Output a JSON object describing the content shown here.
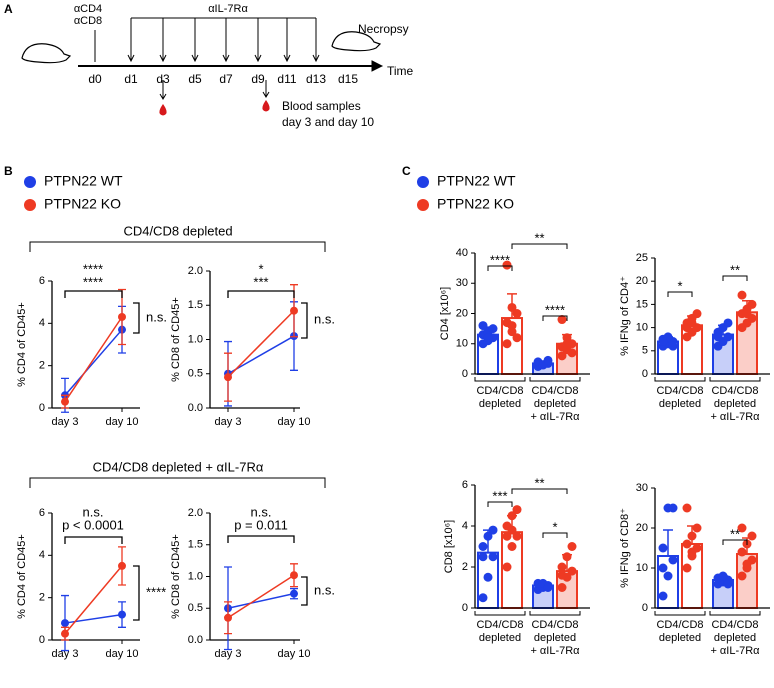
{
  "panel_labels": [
    "A",
    "B",
    "C"
  ],
  "timeline": {
    "injection": [
      "αCD4",
      "αCD8"
    ],
    "treatment": "αIL-7Rα",
    "end": "Necropsy",
    "days": [
      "d0",
      "d1",
      "d3",
      "d5",
      "d7",
      "d9",
      "d11",
      "d13",
      "d15"
    ],
    "axis_label": "Time",
    "note": [
      "Blood samples",
      "day 3 and day 10"
    ]
  },
  "panel_b_groups": [
    "CD4/CD8 depleted",
    "CD4/CD8 depleted + αIL-7Rα"
  ],
  "chart_data": [
    {
      "type": "line",
      "ylabel": "% CD4 of CD45+",
      "categories": [
        "day 3",
        "day 10"
      ],
      "ylim": [
        0,
        6
      ],
      "yticks": [
        0,
        2,
        4,
        6
      ],
      "series": [
        {
          "name": "PTPN22 WT",
          "color": "#1f3fe6",
          "values": [
            0.6,
            3.7
          ],
          "errors": [
            0.8,
            1.1
          ]
        },
        {
          "name": "PTPN22 KO",
          "color": "#ee3a23",
          "values": [
            0.3,
            4.3
          ],
          "errors": [
            0.3,
            1.3
          ]
        }
      ],
      "annotations": [
        {
          "text": "****",
          "color": "#1f3fe6"
        },
        {
          "text": "****",
          "color": "#ee3a23"
        },
        {
          "text": "n.s.",
          "color": "#000000"
        }
      ]
    },
    {
      "type": "line",
      "ylabel": "% CD8 of CD45+",
      "categories": [
        "day 3",
        "day 10"
      ],
      "ylim": [
        0,
        2
      ],
      "yticks": [
        {
          "value": 0,
          "label": "0.0"
        },
        0.5,
        {
          "value": 1,
          "label": "1.0"
        },
        1.5,
        {
          "value": 2,
          "label": "2.0"
        }
      ],
      "series": [
        {
          "color": "#1f3fe6",
          "values": [
            0.5,
            1.05
          ],
          "errors": [
            0.47,
            0.5
          ]
        },
        {
          "color": "#ee3a23",
          "values": [
            0.45,
            1.42
          ],
          "errors": [
            0.35,
            0.38
          ]
        }
      ],
      "annotations": [
        {
          "text": "*",
          "color": "#1f3fe6"
        },
        {
          "text": "***",
          "color": "#ee3a23"
        },
        {
          "text": "n.s.",
          "color": "#000000"
        }
      ]
    },
    {
      "type": "line",
      "ylabel": "% CD4 of CD45+",
      "categories": [
        "day 3",
        "day 10"
      ],
      "ylim": [
        0,
        6
      ],
      "yticks": [
        0,
        2,
        4,
        6
      ],
      "series": [
        {
          "color": "#1f3fe6",
          "values": [
            0.8,
            1.2
          ],
          "errors": [
            1.3,
            0.6
          ]
        },
        {
          "color": "#ee3a23",
          "values": [
            0.3,
            3.5
          ],
          "errors": [
            0.3,
            0.9
          ]
        }
      ],
      "annotations": [
        {
          "text": "n.s.",
          "color": "#1f3fe6"
        },
        {
          "text": "p < 0.0001",
          "color": "#ee3a23"
        },
        {
          "text": "****",
          "color": "#000000"
        }
      ]
    },
    {
      "type": "line",
      "ylabel": "% CD8 of CD45+",
      "categories": [
        "day 3",
        "day 10"
      ],
      "ylim": [
        0,
        2
      ],
      "yticks": [
        {
          "value": 0,
          "label": "0.0"
        },
        0.5,
        {
          "value": 1,
          "label": "1.0"
        },
        1.5,
        {
          "value": 2,
          "label": "2.0"
        }
      ],
      "series": [
        {
          "color": "#1f3fe6",
          "values": [
            0.5,
            0.73
          ],
          "errors": [
            0.65,
            0.08
          ]
        },
        {
          "color": "#ee3a23",
          "values": [
            0.35,
            1.02
          ],
          "errors": [
            0.25,
            0.18
          ]
        }
      ],
      "annotations": [
        {
          "text": "n.s.",
          "color": "#1f3fe6"
        },
        {
          "text": "p = 0.011",
          "color": "#ee3a23"
        },
        {
          "text": "n.s.",
          "color": "#000000"
        }
      ]
    },
    {
      "type": "bar",
      "ylabel": "CD4 [x10⁶]",
      "categories": [
        [
          "CD4/CD8",
          "depleted"
        ],
        [
          "CD4/CD8",
          "depleted",
          "+ αIL-7Rα"
        ]
      ],
      "ylim": [
        0,
        40
      ],
      "yticks": [
        0,
        10,
        20,
        30,
        40
      ],
      "series": [
        {
          "name": "PTPN22 WT",
          "color": "#1f3fe6",
          "values": [
            13,
            3.5
          ],
          "errors": [
            2.5,
            0.8
          ],
          "points": [
            [
              10,
              11,
              12,
              13,
              14,
              15,
              16,
              12
            ],
            [
              2.5,
              3,
              3.5,
              4,
              3,
              4.5
            ]
          ]
        },
        {
          "name": "PTPN22 KO",
          "color": "#ee3a23",
          "values": [
            18.5,
            10
          ],
          "errors": [
            8,
            3
          ],
          "points": [
            [
              36,
              22,
              20,
              17,
              14,
              12,
              10,
              16
            ],
            [
              18,
              12,
              10,
              9,
              8,
              7,
              6,
              10
            ]
          ]
        }
      ],
      "annotations": [
        "****",
        "**",
        "****"
      ]
    },
    {
      "type": "bar",
      "ylabel": "% IFNg of CD4⁺",
      "categories": [
        [
          "CD4/CD8",
          "depleted"
        ],
        [
          "CD4/CD8",
          "depleted",
          "+ αIL-7Rα"
        ]
      ],
      "ylim": [
        0,
        25
      ],
      "yticks": [
        0,
        5,
        10,
        15,
        20,
        25
      ],
      "series": [
        {
          "color": "#1f3fe6",
          "values": [
            7,
            8.5
          ],
          "errors": [
            1,
            2
          ],
          "points": [
            [
              6,
              6.5,
              7,
              7.5,
              8,
              6,
              7
            ],
            [
              6,
              7,
              8,
              9,
              10,
              11,
              8
            ]
          ]
        },
        {
          "color": "#ee3a23",
          "values": [
            10.5,
            13.3
          ],
          "errors": [
            2,
            2.5
          ],
          "points": [
            [
              8,
              9,
              10,
              11,
              12,
              13,
              10,
              11
            ],
            [
              10,
              11,
              12,
              13,
              14,
              15,
              17,
              13
            ]
          ]
        }
      ],
      "annotations": [
        "*",
        "**"
      ]
    },
    {
      "type": "bar",
      "ylabel": "CD8 [x10⁶]",
      "categories": [
        [
          "CD4/CD8",
          "depleted"
        ],
        [
          "CD4/CD8",
          "depleted",
          "+ αIL-7Rα"
        ]
      ],
      "ylim": [
        0,
        6
      ],
      "yticks": [
        0,
        2,
        4,
        6
      ],
      "series": [
        {
          "color": "#1f3fe6",
          "values": [
            2.7,
            1.1
          ],
          "errors": [
            1.1,
            0.15
          ],
          "points": [
            [
              0.5,
              1.5,
              2.5,
              3,
              3.5,
              3.8,
              2.5
            ],
            [
              0.9,
              1,
              1.1,
              1.2,
              1.2,
              1
            ]
          ]
        },
        {
          "color": "#ee3a23",
          "values": [
            3.7,
            1.8
          ],
          "errors": [
            0.8,
            0.8
          ],
          "points": [
            [
              2,
              3,
              3.5,
              4,
              4.5,
              4.8,
              3.5,
              3.8
            ],
            [
              1,
              1.5,
              1.8,
              2,
              2.5,
              3,
              1.6
            ]
          ]
        }
      ],
      "annotations": [
        "***",
        "**",
        "*"
      ]
    },
    {
      "type": "bar",
      "ylabel": "% IFNg of CD8⁺",
      "categories": [
        [
          "CD4/CD8",
          "depleted"
        ],
        [
          "CD4/CD8",
          "depleted",
          "+ αIL-7Rα"
        ]
      ],
      "ylim": [
        0,
        30
      ],
      "yticks": [
        0,
        10,
        20,
        30
      ],
      "series": [
        {
          "color": "#1f3fe6",
          "values": [
            13,
            7
          ],
          "errors": [
            6.5,
            1
          ],
          "points": [
            [
              3,
              8,
              12,
              15,
              25,
              25,
              10
            ],
            [
              6,
              6.5,
              7,
              7.5,
              8,
              6
            ]
          ]
        },
        {
          "color": "#ee3a23",
          "values": [
            16,
            13.5
          ],
          "errors": [
            4.5,
            4
          ],
          "points": [
            [
              10,
              13,
              15,
              16,
              18,
              20,
              25,
              14
            ],
            [
              8,
              10,
              12,
              14,
              16,
              18,
              20,
              11
            ]
          ]
        }
      ],
      "annotations": [
        "**"
      ]
    }
  ]
}
